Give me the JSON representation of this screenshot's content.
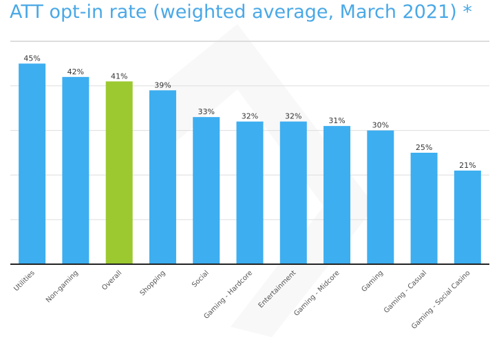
{
  "chart_data": {
    "type": "bar",
    "title": "ATT opt-in rate (weighted average, March 2021) *",
    "categories": [
      "Utilities",
      "Non-gaming",
      "Overall",
      "Shopping",
      "Social",
      "Gaming - Hardcore",
      "Entertainment",
      "Gaming - Midcore",
      "Gaming",
      "Gaming - Casual",
      "Gaming - Social Casino"
    ],
    "values": [
      45,
      42,
      41,
      39,
      33,
      32,
      32,
      31,
      30,
      25,
      21
    ],
    "data_labels": [
      "45%",
      "42%",
      "41%",
      "39%",
      "33%",
      "32%",
      "32%",
      "31%",
      "30%",
      "25%",
      "21%"
    ],
    "highlight_category": "Overall",
    "colors": {
      "bar": "#3daef0",
      "highlight": "#9bc92f",
      "gridline": "#dddddd",
      "axis": "#222222",
      "title": "#4aa8e6"
    },
    "ylim": [
      0,
      50
    ],
    "grid": true,
    "legend": "none"
  }
}
